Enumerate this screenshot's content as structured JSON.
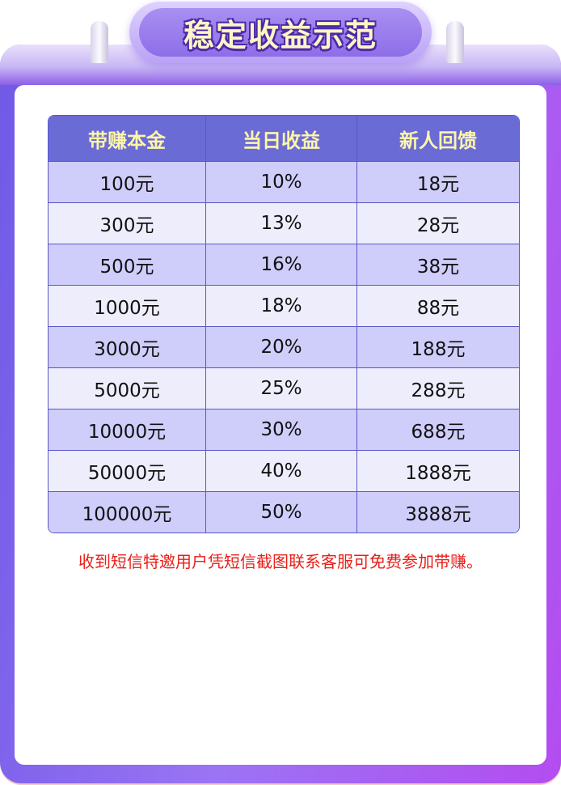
{
  "title": "稳定收益示范",
  "table": {
    "headers": [
      "带赚本金",
      "当日收益",
      "新人回馈"
    ],
    "rows": [
      [
        "100元",
        "10%",
        "18元"
      ],
      [
        "300元",
        "13%",
        "28元"
      ],
      [
        "500元",
        "16%",
        "38元"
      ],
      [
        "1000元",
        "18%",
        "88元"
      ],
      [
        "3000元",
        "20%",
        "188元"
      ],
      [
        "5000元",
        "25%",
        "288元"
      ],
      [
        "10000元",
        "30%",
        "688元"
      ],
      [
        "50000元",
        "40%",
        "1888元"
      ],
      [
        "100000元",
        "50%",
        "3888元"
      ]
    ]
  },
  "note": "收到短信特邀用户凭短信截图联系客服可免费参加带赚。",
  "colors": {
    "header_bg": "#6b6bd6",
    "header_text": "#fdf6a8",
    "row_odd": "#cfcdfa",
    "row_even": "#eeedfc",
    "note": "#e8201a",
    "frame": "#9b74f4"
  }
}
